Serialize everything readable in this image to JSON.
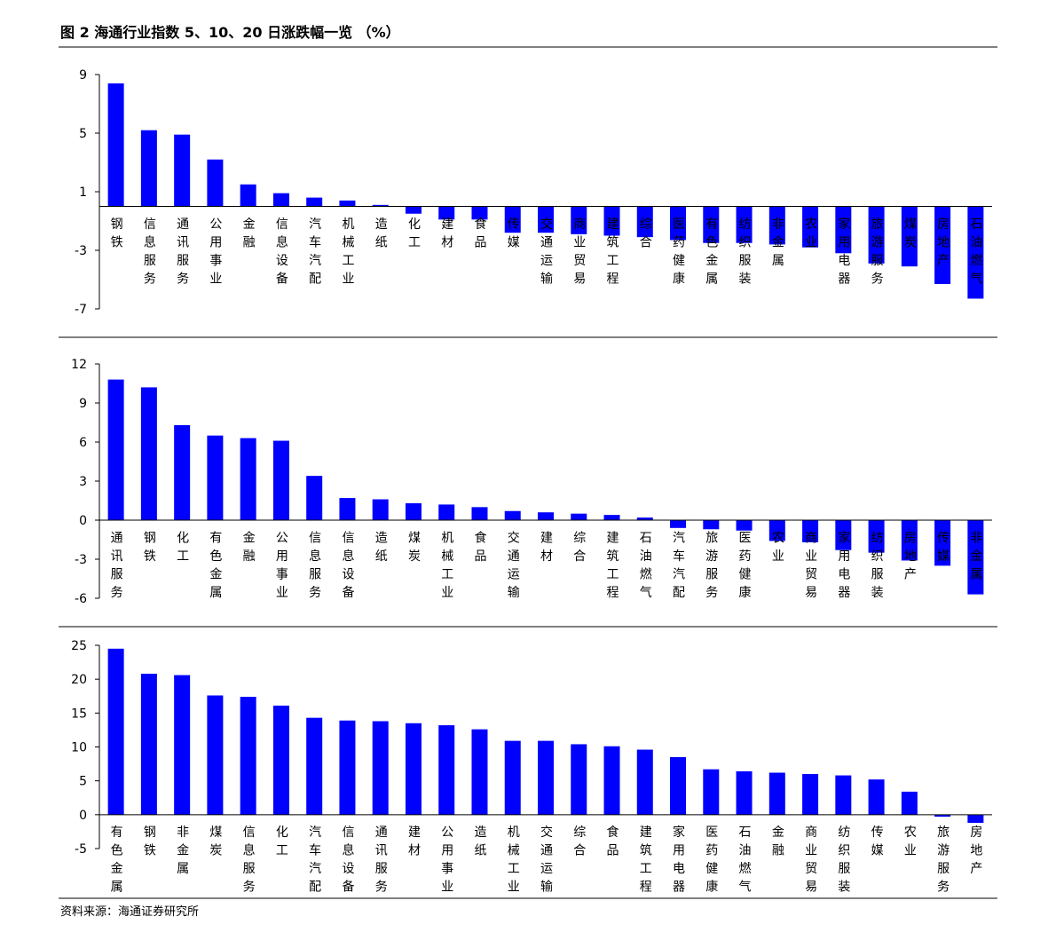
{
  "title": "图 2 海通行业指数 5、10、20 日涨跌幅一览 （%）",
  "source": "资料来源：海通证券研究所",
  "chart_data": [
    {
      "type": "bar",
      "color": "#0000ff",
      "ylim": [
        -7,
        9
      ],
      "yticks": [
        9,
        5,
        1,
        -3,
        -7
      ],
      "categories": [
        "钢铁",
        "信息服务",
        "通讯服务",
        "公用事业",
        "金融",
        "信息设备",
        "汽车汽配",
        "机械工业",
        "造纸",
        "化工",
        "建材",
        "食品",
        "传媒",
        "交通运输",
        "商业贸易",
        "建筑工程",
        "综合",
        "医药健康",
        "有色金属",
        "纺织服装",
        "非金属",
        "农业",
        "家用电器",
        "旅游服务",
        "煤炭",
        "房地产",
        "石油燃气"
      ],
      "values": [
        8.4,
        5.2,
        4.9,
        3.2,
        1.5,
        0.9,
        0.6,
        0.4,
        0.1,
        -0.5,
        -0.9,
        -0.9,
        -1.8,
        -1.8,
        -1.9,
        -2.0,
        -2.1,
        -2.3,
        -2.5,
        -2.5,
        -2.6,
        -2.8,
        -3.2,
        -3.9,
        -4.1,
        -5.3,
        -6.3
      ]
    },
    {
      "type": "bar",
      "color": "#0000ff",
      "ylim": [
        -6,
        12
      ],
      "yticks": [
        12,
        9,
        6,
        3,
        0,
        -3,
        -6
      ],
      "categories": [
        "通讯服务",
        "钢铁",
        "化工",
        "有色金属",
        "金融",
        "公用事业",
        "信息服务",
        "信息设备",
        "造纸",
        "煤炭",
        "机械工业",
        "食品",
        "交通运输",
        "建材",
        "综合",
        "建筑工程",
        "石油燃气",
        "汽车汽配",
        "旅游服务",
        "医药健康",
        "农业",
        "商业贸易",
        "家用电器",
        "纺织服装",
        "房地产",
        "传媒",
        "非金属"
      ],
      "values": [
        10.8,
        10.2,
        7.3,
        6.5,
        6.3,
        6.1,
        3.4,
        1.7,
        1.6,
        1.3,
        1.2,
        1.0,
        0.7,
        0.6,
        0.5,
        0.4,
        0.2,
        -0.6,
        -0.7,
        -0.8,
        -1.6,
        -1.7,
        -2.3,
        -2.5,
        -3.1,
        -3.5,
        -5.7
      ]
    },
    {
      "type": "bar",
      "color": "#0000ff",
      "ylim": [
        -5,
        25
      ],
      "yticks": [
        25,
        20,
        15,
        10,
        5,
        0,
        -5
      ],
      "categories": [
        "有色金属",
        "钢铁",
        "非金属",
        "煤炭",
        "信息服务",
        "化工",
        "汽车汽配",
        "信息设备",
        "通讯服务",
        "建材",
        "公用事业",
        "造纸",
        "机械工业",
        "交通运输",
        "综合",
        "食品",
        "建筑工程",
        "家用电器",
        "医药健康",
        "石油燃气",
        "金融",
        "商业贸易",
        "纺织服装",
        "传媒",
        "农业",
        "旅游服务",
        "房地产"
      ],
      "values": [
        24.5,
        20.8,
        20.6,
        17.6,
        17.4,
        16.1,
        14.3,
        13.9,
        13.8,
        13.5,
        13.2,
        12.6,
        10.9,
        10.9,
        10.4,
        10.1,
        9.6,
        8.5,
        6.7,
        6.4,
        6.2,
        6.0,
        5.8,
        5.2,
        3.4,
        -0.3,
        -1.2
      ]
    }
  ]
}
